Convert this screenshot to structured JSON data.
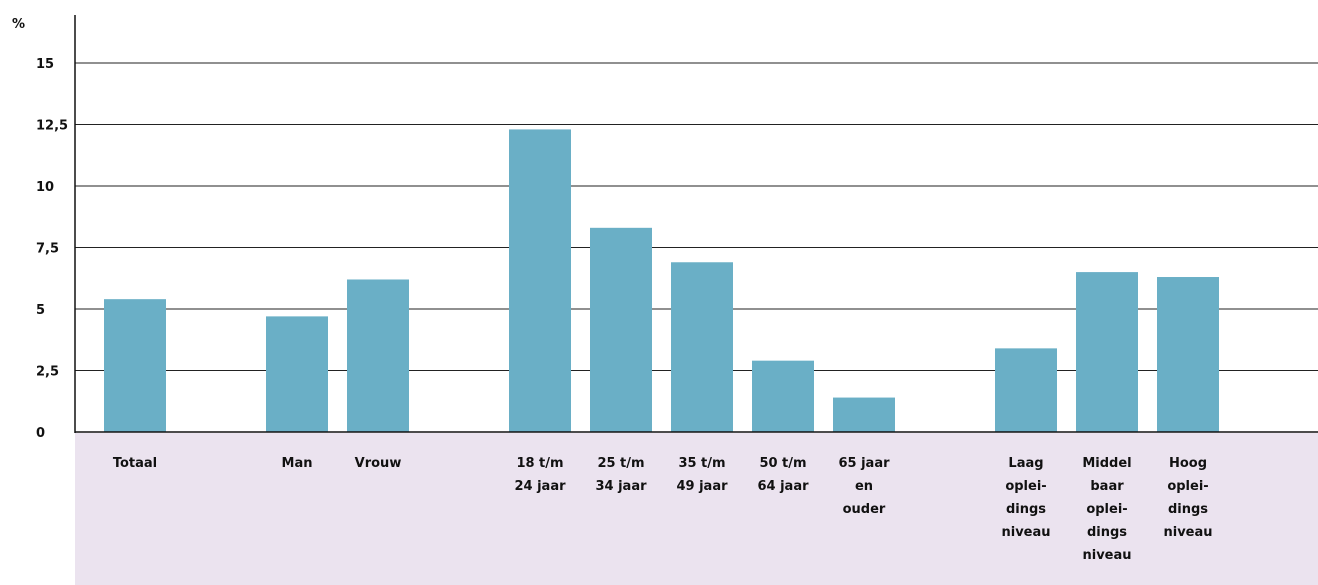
{
  "chart_data": {
    "type": "bar",
    "ylabel": "%",
    "ylim": [
      0,
      17
    ],
    "yticks": [
      {
        "value": 0,
        "label": "0"
      },
      {
        "value": 2.5,
        "label": "2,5"
      },
      {
        "value": 5,
        "label": "5"
      },
      {
        "value": 7.5,
        "label": "7,5"
      },
      {
        "value": 10,
        "label": "10"
      },
      {
        "value": 12.5,
        "label": "12,5"
      },
      {
        "value": 15,
        "label": "15"
      }
    ],
    "grid": true,
    "categories": [
      {
        "lines": [
          "Totaal"
        ],
        "value": 5.4,
        "slot": 0
      },
      {
        "lines": [
          "Man"
        ],
        "value": 4.7,
        "slot": 2
      },
      {
        "lines": [
          "Vrouw"
        ],
        "value": 6.2,
        "slot": 3
      },
      {
        "lines": [
          "18 t/m",
          "24 jaar"
        ],
        "value": 12.3,
        "slot": 5
      },
      {
        "lines": [
          "25 t/m",
          "34 jaar"
        ],
        "value": 8.3,
        "slot": 6
      },
      {
        "lines": [
          "35 t/m",
          "49 jaar"
        ],
        "value": 6.9,
        "slot": 7
      },
      {
        "lines": [
          "50 t/m",
          "64 jaar"
        ],
        "value": 2.9,
        "slot": 8
      },
      {
        "lines": [
          "65 jaar",
          "en",
          "ouder"
        ],
        "value": 1.4,
        "slot": 9
      },
      {
        "lines": [
          "Laag",
          "oplei-",
          "dings",
          "niveau"
        ],
        "value": 3.4,
        "slot": 11
      },
      {
        "lines": [
          "Middel",
          "baar",
          "oplei-",
          "dings",
          "niveau"
        ],
        "value": 6.5,
        "slot": 12
      },
      {
        "lines": [
          "Hoog",
          "oplei-",
          "dings",
          "niveau"
        ],
        "value": 6.3,
        "slot": 13
      }
    ]
  },
  "colors": {
    "bar": "#6aafc6",
    "label_band": "#ebe3ef",
    "grid": "#222222",
    "text": "#111111"
  }
}
